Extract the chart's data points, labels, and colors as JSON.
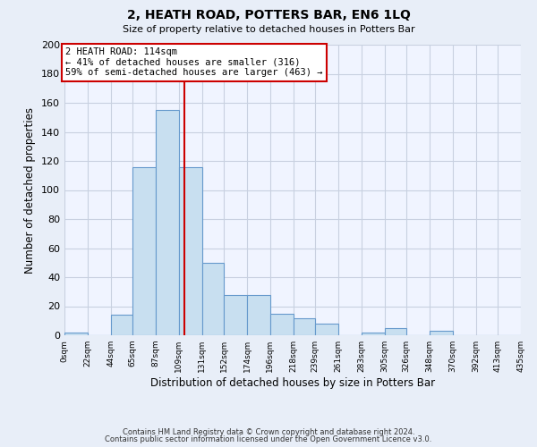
{
  "title": "2, HEATH ROAD, POTTERS BAR, EN6 1LQ",
  "subtitle": "Size of property relative to detached houses in Potters Bar",
  "xlabel": "Distribution of detached houses by size in Potters Bar",
  "ylabel": "Number of detached properties",
  "bin_edges": [
    0,
    22,
    44,
    65,
    87,
    109,
    131,
    152,
    174,
    196,
    218,
    239,
    261,
    283,
    305,
    326,
    348,
    370,
    392,
    413,
    435
  ],
  "bar_heights": [
    2,
    0,
    14,
    116,
    155,
    116,
    50,
    28,
    28,
    15,
    12,
    8,
    0,
    2,
    5,
    0,
    3,
    0,
    0,
    0
  ],
  "bar_color": "#c8dff0",
  "bar_edge_color": "#6699cc",
  "vline_x": 114,
  "vline_color": "#cc0000",
  "annotation_title": "2 HEATH ROAD: 114sqm",
  "annotation_line1": "← 41% of detached houses are smaller (316)",
  "annotation_line2": "59% of semi-detached houses are larger (463) →",
  "annotation_box_color": "#ffffff",
  "annotation_box_edge": "#cc0000",
  "ylim": [
    0,
    200
  ],
  "yticks": [
    0,
    20,
    40,
    60,
    80,
    100,
    120,
    140,
    160,
    180,
    200
  ],
  "footnote1": "Contains HM Land Registry data © Crown copyright and database right 2024.",
  "footnote2": "Contains public sector information licensed under the Open Government Licence v3.0.",
  "bg_color": "#e8eef8",
  "plot_bg_color": "#f0f4ff",
  "grid_color": "#c8d0e0"
}
